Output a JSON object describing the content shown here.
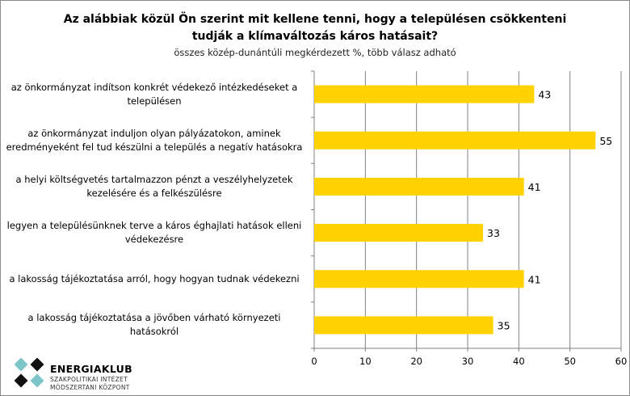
{
  "chart_data": {
    "type": "bar",
    "orientation": "horizontal",
    "title": "Az alábbiak közül Ön szerint mit kellene tenni, hogy a településen csökkenteni tudják a klímaváltozás káros hatásait?",
    "subtitle": "összes közép-dunántúli megkérdezett %, több válasz adható",
    "categories": [
      "az önkormányzat indítson konkrét védekező intézkedéseket a településen",
      "az önkormányzat induljon olyan pályázatokon, aminek eredményeként fel tud készülni a település a negatív hatásokra",
      "a helyi költségvetés tartalmazzon pénzt a veszélyhelyzetek kezelésére és a felkészülésre",
      "legyen a településünknek terve a káros éghajlati hatások elleni védekezésre",
      "a lakosság tájékoztatása arról, hogy hogyan tudnak védekezni",
      "a lakosság tájékoztatása a jövőben várható környezeti hatásokról"
    ],
    "values": [
      43,
      55,
      41,
      33,
      41,
      35
    ],
    "xlim": [
      0,
      60
    ],
    "xticks": [
      "0",
      "10",
      "20",
      "30",
      "40",
      "50",
      "60"
    ],
    "grid": true,
    "bar_color": "#FFD200"
  },
  "logo": {
    "name": "ENERGIAKLUB",
    "line1": "SZAKPOLITIKAI INTÉZET",
    "line2": "MÓDSZERTANI KÖZPONT"
  }
}
